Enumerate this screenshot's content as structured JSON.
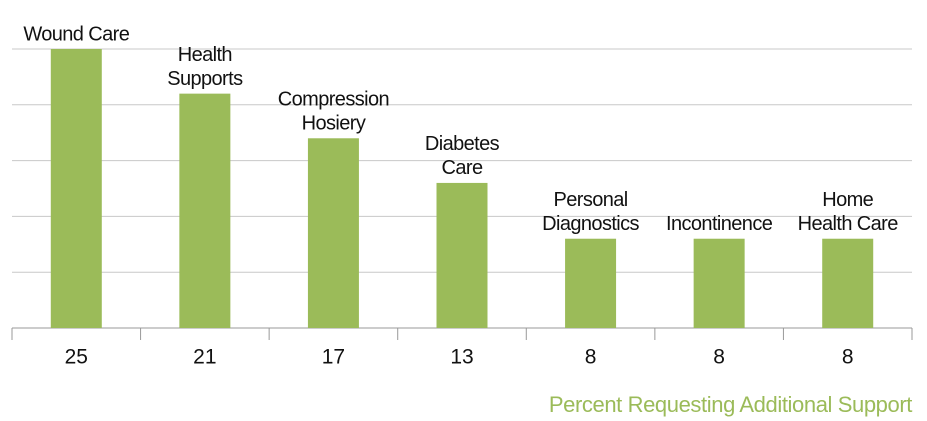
{
  "chart_data": {
    "type": "bar",
    "categories": [
      [
        "Wound Care"
      ],
      [
        "Health",
        "Supports"
      ],
      [
        "Compression",
        "Hosiery"
      ],
      [
        "Diabetes",
        "Care"
      ],
      [
        "Personal",
        "Diagnostics"
      ],
      [
        "Incontinence"
      ],
      [
        "Home",
        "Health Care"
      ]
    ],
    "values": [
      25,
      21,
      17,
      13,
      8,
      8,
      8
    ],
    "color": "#9bbb59",
    "xlabel": "Percent Requesting Additional Support",
    "ylim": [
      0,
      25
    ],
    "yticks": [
      0,
      5,
      10,
      15,
      20,
      25
    ],
    "grid": true
  }
}
